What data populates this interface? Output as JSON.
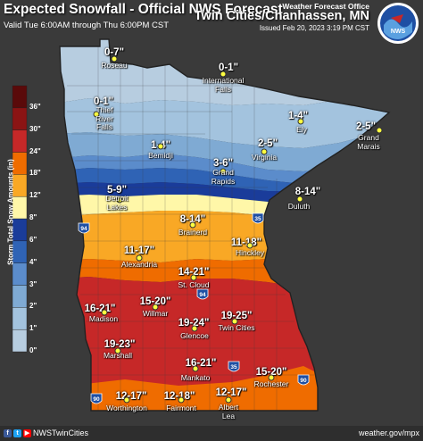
{
  "header": {
    "title": "Expected Snowfall - Official NWS Forecast",
    "valid": "Valid Tue 6:00AM through Thu 6:00PM CST",
    "office_small": "Weather Forecast Office",
    "office": "Twin Cities/Chanhassen, MN",
    "issued": "Issued Feb 20, 2023 3:19 PM CST"
  },
  "logo": {
    "text": "NWS"
  },
  "footer": {
    "handle": "NWSTwinCities",
    "website": "weather.gov/mpx"
  },
  "legend": {
    "title": "Storm Total Snow Amounts (in)",
    "bins": [
      {
        "label": "0\"",
        "color": "#b7cde0"
      },
      {
        "label": "1\"",
        "color": "#a3c3de"
      },
      {
        "label": "2\"",
        "color": "#7faad3"
      },
      {
        "label": "3\"",
        "color": "#5b8ccb"
      },
      {
        "label": "4\"",
        "color": "#2f63b5"
      },
      {
        "label": "6\"",
        "color": "#1a3c9a"
      },
      {
        "label": "8\"",
        "color": "#fff7a8"
      },
      {
        "label": "12\"",
        "color": "#f9a825"
      },
      {
        "label": "18\"",
        "color": "#ef6c00"
      },
      {
        "label": "24\"",
        "color": "#c62828"
      },
      {
        "label": "30\"",
        "color": "#8b1414"
      },
      {
        "label": "36\"",
        "color": "#5a0a0a"
      }
    ]
  },
  "zones": [
    {
      "name": "0-1",
      "color": "#b7cde0"
    },
    {
      "name": "1-2",
      "color": "#a3c3de"
    },
    {
      "name": "2-3",
      "color": "#7faad3"
    },
    {
      "name": "3-4",
      "color": "#5b8ccb"
    },
    {
      "name": "4-6",
      "color": "#2f63b5"
    },
    {
      "name": "6-8",
      "color": "#1a3c9a"
    },
    {
      "name": "8-12",
      "color": "#fff7a8"
    },
    {
      "name": "12-18",
      "color": "#f9a825"
    },
    {
      "name": "18-24",
      "color": "#ef6c00"
    },
    {
      "name": "24-30",
      "color": "#c62828"
    }
  ],
  "amounts": [
    {
      "text": "0-7\""
    },
    {
      "text": "0-1\""
    },
    {
      "text": "0-1\""
    },
    {
      "text": "1-4\""
    },
    {
      "text": "2-5\""
    },
    {
      "text": "1-4\""
    },
    {
      "text": "2-5\""
    },
    {
      "text": "3-6\""
    },
    {
      "text": "5-9\""
    },
    {
      "text": "8-14\""
    },
    {
      "text": "8-14\""
    },
    {
      "text": "11-17\""
    },
    {
      "text": "11-18\""
    },
    {
      "text": "14-21\""
    },
    {
      "text": "16-21\""
    },
    {
      "text": "15-20\""
    },
    {
      "text": "19-24\""
    },
    {
      "text": "19-25\""
    },
    {
      "text": "19-23\""
    },
    {
      "text": "16-21\""
    },
    {
      "text": "15-20\""
    },
    {
      "text": "12-17\""
    },
    {
      "text": "12-18\""
    },
    {
      "text": "12-17\""
    }
  ],
  "cities": [
    {
      "name": "Roseau"
    },
    {
      "name": "International\nFalls"
    },
    {
      "name": "Thief\nRiver\nFalls"
    },
    {
      "name": "Ely"
    },
    {
      "name": "Grand\nMarais"
    },
    {
      "name": "Bemidji"
    },
    {
      "name": "Virginia"
    },
    {
      "name": "Grand\nRapids"
    },
    {
      "name": "Detroit\nLakes"
    },
    {
      "name": "Duluth"
    },
    {
      "name": "Brainerd"
    },
    {
      "name": "Alexandria"
    },
    {
      "name": "Hinckley"
    },
    {
      "name": "St. Cloud"
    },
    {
      "name": "Madison"
    },
    {
      "name": "Willmar"
    },
    {
      "name": "Glencoe"
    },
    {
      "name": "Twin Cities"
    },
    {
      "name": "Marshall"
    },
    {
      "name": "Mankato"
    },
    {
      "name": "Rochester"
    },
    {
      "name": "Worthington"
    },
    {
      "name": "Fairmont"
    },
    {
      "name": "Albert\nLea"
    }
  ],
  "highways": [
    "94",
    "35",
    "94",
    "35",
    "90",
    "90"
  ]
}
